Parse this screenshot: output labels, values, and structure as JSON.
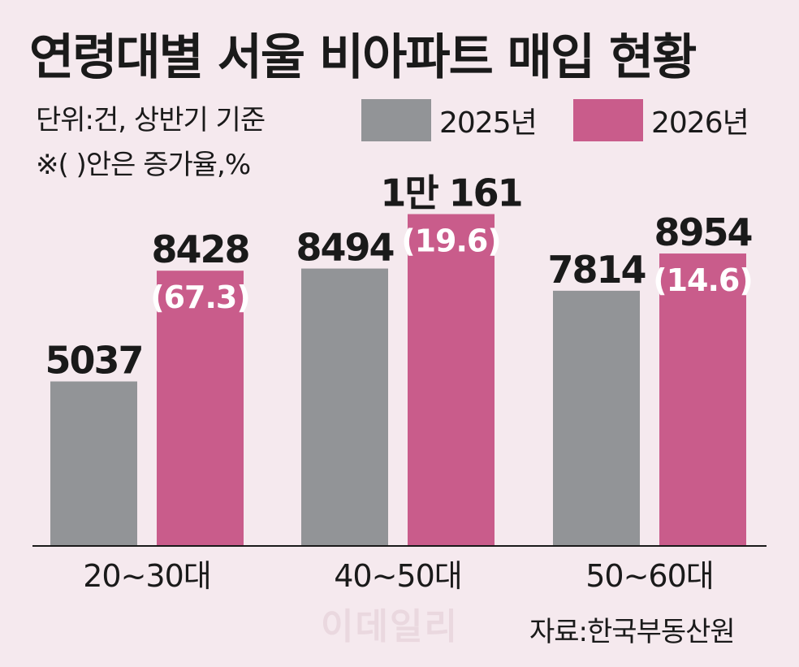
{
  "chart_data": {
    "type": "bar",
    "title": "연령대별 서울 비아파트 매입 현황",
    "unit_note": "단위:건, 상반기 기준",
    "paren_note": "※(   )안은 증가율,%",
    "categories": [
      "20~30대",
      "40~50대",
      "50~60대"
    ],
    "series": [
      {
        "name": "2025년",
        "color": "#929497",
        "values": [
          5037,
          8494,
          7814
        ],
        "labels": [
          "5037",
          "8494",
          "7814"
        ]
      },
      {
        "name": "2026년",
        "color": "#c95c8b",
        "values": [
          8428,
          10161,
          8954
        ],
        "labels": [
          "8428",
          "1만 161",
          "8954"
        ],
        "growth": [
          "(67.3)",
          "(19.6)",
          "(14.6)"
        ]
      }
    ],
    "source": "자료:한국부동산원",
    "watermark": "이데일리"
  }
}
